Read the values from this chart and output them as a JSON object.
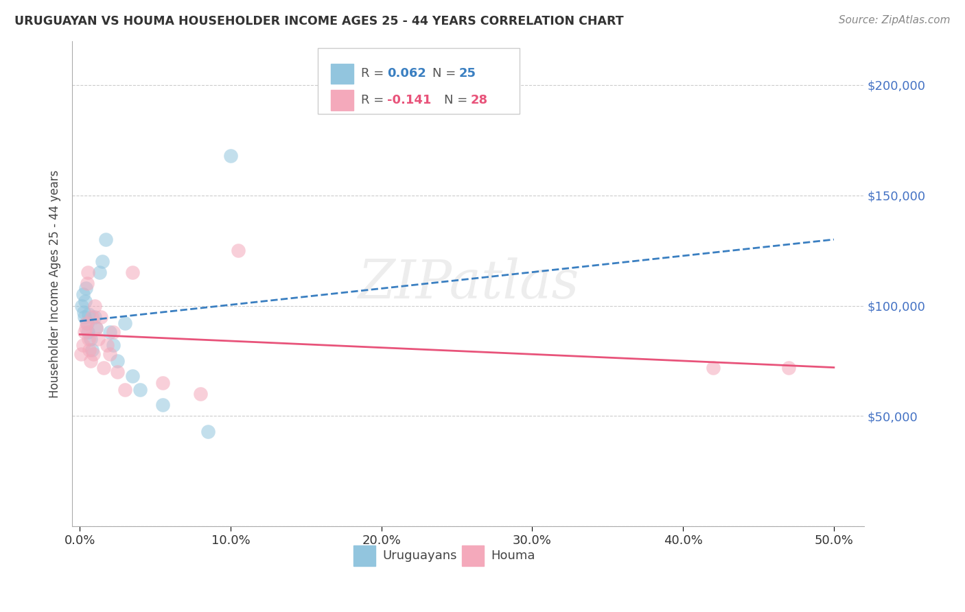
{
  "title": "URUGUAYAN VS HOUMA HOUSEHOLDER INCOME AGES 25 - 44 YEARS CORRELATION CHART",
  "source": "Source: ZipAtlas.com",
  "ylabel": "Householder Income Ages 25 - 44 years",
  "xlabel_ticks": [
    "0.0%",
    "10.0%",
    "20.0%",
    "30.0%",
    "40.0%",
    "50.0%"
  ],
  "xlabel_vals": [
    0,
    10,
    20,
    30,
    40,
    50
  ],
  "ylim": [
    0,
    220000
  ],
  "xlim": [
    -0.5,
    52
  ],
  "yticks": [
    0,
    50000,
    100000,
    150000,
    200000
  ],
  "ytick_labels_right": [
    "",
    "$50,000",
    "$100,000",
    "$150,000",
    "$200,000"
  ],
  "legend_r1": "0.062",
  "legend_n1": "25",
  "legend_r2": "-0.141",
  "legend_n2": "28",
  "blue_color": "#92c5de",
  "pink_color": "#f4a9bb",
  "blue_line_color": "#3a7fc1",
  "pink_line_color": "#e8537a",
  "watermark": "ZIPatlas",
  "uruguayan_x": [
    0.15,
    0.2,
    0.25,
    0.3,
    0.35,
    0.4,
    0.5,
    0.55,
    0.6,
    0.7,
    0.8,
    1.0,
    1.1,
    1.3,
    1.5,
    1.7,
    2.0,
    2.2,
    2.5,
    3.0,
    3.5,
    4.0,
    5.5,
    8.5,
    10.0
  ],
  "uruguayan_y": [
    100000,
    105000,
    97000,
    95000,
    102000,
    108000,
    92000,
    88000,
    96000,
    85000,
    80000,
    95000,
    90000,
    115000,
    120000,
    130000,
    88000,
    82000,
    75000,
    92000,
    68000,
    62000,
    55000,
    43000,
    168000
  ],
  "houma_x": [
    0.1,
    0.2,
    0.3,
    0.4,
    0.45,
    0.5,
    0.55,
    0.6,
    0.65,
    0.7,
    0.8,
    0.9,
    1.0,
    1.1,
    1.2,
    1.4,
    1.6,
    1.8,
    2.0,
    2.2,
    2.5,
    3.0,
    3.5,
    5.5,
    8.0,
    10.5,
    42.0,
    47.0
  ],
  "houma_y": [
    78000,
    82000,
    88000,
    90000,
    92000,
    110000,
    115000,
    85000,
    80000,
    75000,
    95000,
    78000,
    100000,
    90000,
    85000,
    95000,
    72000,
    82000,
    78000,
    88000,
    70000,
    62000,
    115000,
    65000,
    60000,
    125000,
    72000,
    72000
  ],
  "blue_trend_x0": 0,
  "blue_trend_y0": 93000,
  "blue_trend_x1": 50,
  "blue_trend_y1": 130000,
  "pink_trend_x0": 0,
  "pink_trend_y0": 87000,
  "pink_trend_x1": 50,
  "pink_trend_y1": 72000
}
